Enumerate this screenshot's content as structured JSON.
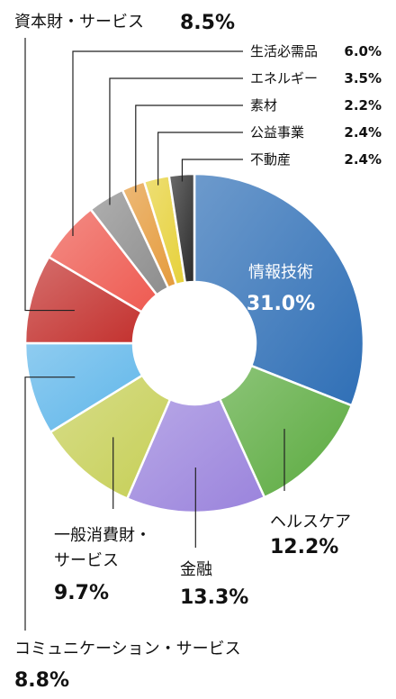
{
  "chart_data": {
    "type": "pie",
    "variant": "donut",
    "slices": [
      {
        "name": "情報技術",
        "value": "31.0%",
        "v": 31.0,
        "color": "#2f6fb6"
      },
      {
        "name": "ヘルスケア",
        "value": "12.2%",
        "v": 12.2,
        "color": "#5aaa3e"
      },
      {
        "name": "金融",
        "value": "13.3%",
        "v": 13.3,
        "color": "#9a83dc"
      },
      {
        "name_lines": [
          "一般消費財・",
          "サービス"
        ],
        "value": "9.7%",
        "v": 9.7,
        "color": "#c6cf56"
      },
      {
        "name": "コミュニケーション・サービス",
        "value": "8.8%",
        "v": 8.8,
        "color": "#5fb6ea"
      },
      {
        "name": "資本財・サービス",
        "value": "8.5%",
        "v": 8.5,
        "color": "#c3312e"
      },
      {
        "name": "生活必需品",
        "value": "6.0%",
        "v": 6.0,
        "color": "#ee5a51"
      },
      {
        "name": "エネルギー",
        "value": "3.5%",
        "v": 3.5,
        "color": "#8d8d8d"
      },
      {
        "name": "素材",
        "value": "2.2%",
        "v": 2.2,
        "color": "#e59b3c"
      },
      {
        "name": "公益事業",
        "value": "2.4%",
        "v": 2.4,
        "color": "#e6d13a"
      },
      {
        "name": "不動産",
        "value": "2.4%",
        "v": 2.4,
        "color": "#2b2b2b"
      }
    ]
  }
}
